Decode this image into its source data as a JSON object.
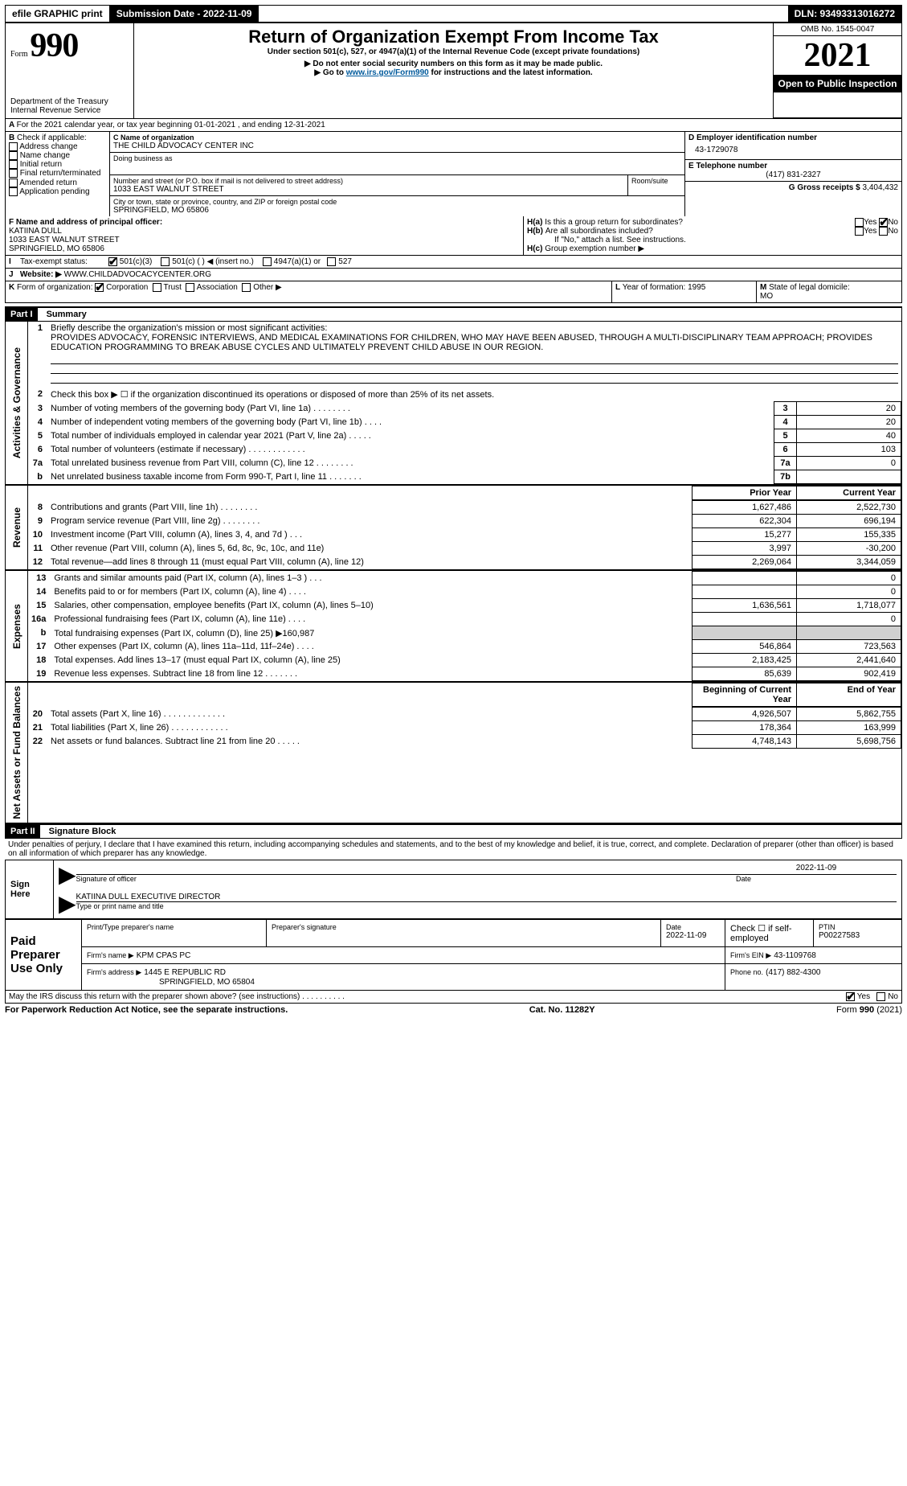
{
  "efile": {
    "graphic": "efile GRAPHIC print",
    "submission_label": "Submission Date - 2022-11-09",
    "dln": "DLN: 93493313016272"
  },
  "header": {
    "form_prefix": "Form",
    "form_number": "990",
    "title": "Return of Organization Exempt From Income Tax",
    "subtitle": "Under section 501(c), 527, or 4947(a)(1) of the Internal Revenue Code (except private foundations)",
    "note1": "Do not enter social security numbers on this form as it may be made public.",
    "note2": "Go to www.irs.gov/Form990 for instructions and the latest information.",
    "dept": "Department of the Treasury",
    "irs": "Internal Revenue Service",
    "omb": "OMB No. 1545-0047",
    "year": "2021",
    "open": "Open to Public Inspection"
  },
  "A": {
    "text": "For the 2021 calendar year, or tax year beginning 01-01-2021    , and ending 12-31-2021"
  },
  "B": {
    "label": "Check if applicable:",
    "items": [
      "Address change",
      "Name change",
      "Initial return",
      "Final return/terminated",
      "Amended return",
      "Application pending"
    ]
  },
  "C": {
    "name_label": "C Name of organization",
    "name": "THE CHILD ADVOCACY CENTER INC",
    "dba_label": "Doing business as",
    "street_label": "Number and street (or P.O. box if mail is not delivered to street address)",
    "room_label": "Room/suite",
    "street": "1033 EAST WALNUT STREET",
    "city_label": "City or town, state or province, country, and ZIP or foreign postal code",
    "city": "SPRINGFIELD, MO  65806"
  },
  "D": {
    "label": "D Employer identification number",
    "value": "43-1729078"
  },
  "E": {
    "label": "E Telephone number",
    "value": "(417) 831-2327"
  },
  "G": {
    "label": "G Gross receipts $",
    "value": "3,404,432"
  },
  "F": {
    "label": "F  Name and address of principal officer:",
    "name": "KATIINA DULL",
    "street": "1033 EAST WALNUT STREET",
    "city": "SPRINGFIELD, MO  65806"
  },
  "H": {
    "a": "Is this a group return for subordinates?",
    "b": "Are all subordinates included?",
    "b2": "If \"No,\" attach a list. See instructions.",
    "c": "Group exemption number ▶",
    "yes": "Yes",
    "no": "No"
  },
  "I": {
    "label": "Tax-exempt status:",
    "opts": [
      "501(c)(3)",
      "501(c) (   ) ◀ (insert no.)",
      "4947(a)(1) or",
      "527"
    ]
  },
  "J": {
    "label": "Website: ▶",
    "value": "WWW.CHILDADVOCACYCENTER.ORG"
  },
  "K": {
    "label": "Form of organization:",
    "opts": [
      "Corporation",
      "Trust",
      "Association",
      "Other ▶"
    ]
  },
  "L": {
    "label": "Year of formation:",
    "value": "1995"
  },
  "M": {
    "label": "State of legal domicile:",
    "value": "MO"
  },
  "part1": {
    "hdr": "Part I",
    "title": "Summary",
    "mission_label": "Briefly describe the organization's mission or most significant activities:",
    "mission": "PROVIDES ADVOCACY, FORENSIC INTERVIEWS, AND MEDICAL EXAMINATIONS FOR CHILDREN, WHO MAY HAVE BEEN ABUSED, THROUGH A MULTI-DISCIPLINARY TEAM APPROACH; PROVIDES EDUCATION PROGRAMMING TO BREAK ABUSE CYCLES AND ULTIMATELY PREVENT CHILD ABUSE IN OUR REGION.",
    "line2": "Check this box ▶ ☐  if the organization discontinued its operations or disposed of more than 25% of its net assets.",
    "sidebars": {
      "gov": "Activities & Governance",
      "rev": "Revenue",
      "exp": "Expenses",
      "net": "Net Assets or Fund Balances"
    },
    "cols": {
      "prior": "Prior Year",
      "curr": "Current Year",
      "boy": "Beginning of Current Year",
      "eoy": "End of Year"
    },
    "lines_gov": [
      {
        "n": "3",
        "t": "Number of voting members of the governing body (Part VI, line 1a)   .    .    .    .    .    .    .    .",
        "box": "3",
        "v": "20"
      },
      {
        "n": "4",
        "t": "Number of independent voting members of the governing body (Part VI, line 1b)   .    .    .    .",
        "box": "4",
        "v": "20"
      },
      {
        "n": "5",
        "t": "Total number of individuals employed in calendar year 2021 (Part V, line 2a)   .    .    .    .    .",
        "box": "5",
        "v": "40"
      },
      {
        "n": "6",
        "t": "Total number of volunteers (estimate if necessary)   .    .    .    .    .    .    .    .    .    .    .    .",
        "box": "6",
        "v": "103"
      },
      {
        "n": "7a",
        "t": "Total unrelated business revenue from Part VIII, column (C), line 12   .    .    .    .    .    .    .    .",
        "box": "7a",
        "v": "0"
      },
      {
        "n": "b",
        "t": "Net unrelated business taxable income from Form 990-T, Part I, line 11   .    .    .    .    .    .    .",
        "box": "7b",
        "v": ""
      }
    ],
    "lines_rev": [
      {
        "n": "8",
        "t": "Contributions and grants (Part VIII, line 1h)   .    .    .    .    .    .    .    .",
        "p": "1,627,486",
        "c": "2,522,730"
      },
      {
        "n": "9",
        "t": "Program service revenue (Part VIII, line 2g)   .    .    .    .    .    .    .    .",
        "p": "622,304",
        "c": "696,194"
      },
      {
        "n": "10",
        "t": "Investment income (Part VIII, column (A), lines 3, 4, and 7d )   .    .    .",
        "p": "15,277",
        "c": "155,335"
      },
      {
        "n": "11",
        "t": "Other revenue (Part VIII, column (A), lines 5, 6d, 8c, 9c, 10c, and 11e)",
        "p": "3,997",
        "c": "-30,200"
      },
      {
        "n": "12",
        "t": "Total revenue—add lines 8 through 11 (must equal Part VIII, column (A), line 12)",
        "p": "2,269,064",
        "c": "3,344,059"
      }
    ],
    "lines_exp": [
      {
        "n": "13",
        "t": "Grants and similar amounts paid (Part IX, column (A), lines 1–3 )   .    .    .",
        "p": "",
        "c": "0"
      },
      {
        "n": "14",
        "t": "Benefits paid to or for members (Part IX, column (A), line 4)   .    .    .    .",
        "p": "",
        "c": "0"
      },
      {
        "n": "15",
        "t": "Salaries, other compensation, employee benefits (Part IX, column (A), lines 5–10)",
        "p": "1,636,561",
        "c": "1,718,077"
      },
      {
        "n": "16a",
        "t": "Professional fundraising fees (Part IX, column (A), line 11e)   .    .    .    .",
        "p": "",
        "c": "0"
      },
      {
        "n": "b",
        "t": "Total fundraising expenses (Part IX, column (D), line 25) ▶160,987",
        "p": null,
        "c": null,
        "shade": true
      },
      {
        "n": "17",
        "t": "Other expenses (Part IX, column (A), lines 11a–11d, 11f–24e)   .    .    .    .",
        "p": "546,864",
        "c": "723,563"
      },
      {
        "n": "18",
        "t": "Total expenses. Add lines 13–17 (must equal Part IX, column (A), line 25)",
        "p": "2,183,425",
        "c": "2,441,640"
      },
      {
        "n": "19",
        "t": "Revenue less expenses. Subtract line 18 from line 12   .    .    .    .    .    .    .",
        "p": "85,639",
        "c": "902,419"
      }
    ],
    "lines_net": [
      {
        "n": "20",
        "t": "Total assets (Part X, line 16)   .    .    .    .    .    .    .    .    .    .    .    .    .",
        "p": "4,926,507",
        "c": "5,862,755"
      },
      {
        "n": "21",
        "t": "Total liabilities (Part X, line 26)   .    .    .    .    .    .    .    .    .    .    .    .",
        "p": "178,364",
        "c": "163,999"
      },
      {
        "n": "22",
        "t": "Net assets or fund balances. Subtract line 21 from line 20   .    .    .    .    .",
        "p": "4,748,143",
        "c": "5,698,756"
      }
    ]
  },
  "part2": {
    "hdr": "Part II",
    "title": "Signature Block",
    "decl": "Under penalties of perjury, I declare that I have examined this return, including accompanying schedules and statements, and to the best of my knowledge and belief, it is true, correct, and complete. Declaration of preparer (other than officer) is based on all information of which preparer has any knowledge.",
    "sign_here": "Sign Here",
    "sig_officer": "Signature of officer",
    "sig_date": "2022-11-09",
    "date_lbl": "Date",
    "officer_typed": "KATIINA DULL  EXECUTIVE DIRECTOR",
    "typed_lbl": "Type or print name and title",
    "paid": "Paid Preparer Use Only",
    "prep_name_lbl": "Print/Type preparer's name",
    "prep_sig_lbl": "Preparer's signature",
    "prep_date_lbl": "Date",
    "prep_date": "2022-11-09",
    "self_emp": "Check ☐ if self-employed",
    "ptin_lbl": "PTIN",
    "ptin": "P00227583",
    "firm_name_lbl": "Firm's name    ▶",
    "firm_name": "KPM CPAS PC",
    "firm_ein_lbl": "Firm's EIN ▶",
    "firm_ein": "43-1109768",
    "firm_addr_lbl": "Firm's address ▶",
    "firm_addr1": "1445 E REPUBLIC RD",
    "firm_addr2": "SPRINGFIELD, MO  65804",
    "phone_lbl": "Phone no.",
    "phone": "(417) 882-4300",
    "discuss": "May the IRS discuss this return with the preparer shown above? (see instructions)   .    .    .    .    .    .    .    .    .    .",
    "yes": "Yes",
    "no": "No"
  },
  "footer": {
    "pra": "For Paperwork Reduction Act Notice, see the separate instructions.",
    "cat": "Cat. No. 11282Y",
    "form": "Form 990 (2021)"
  }
}
